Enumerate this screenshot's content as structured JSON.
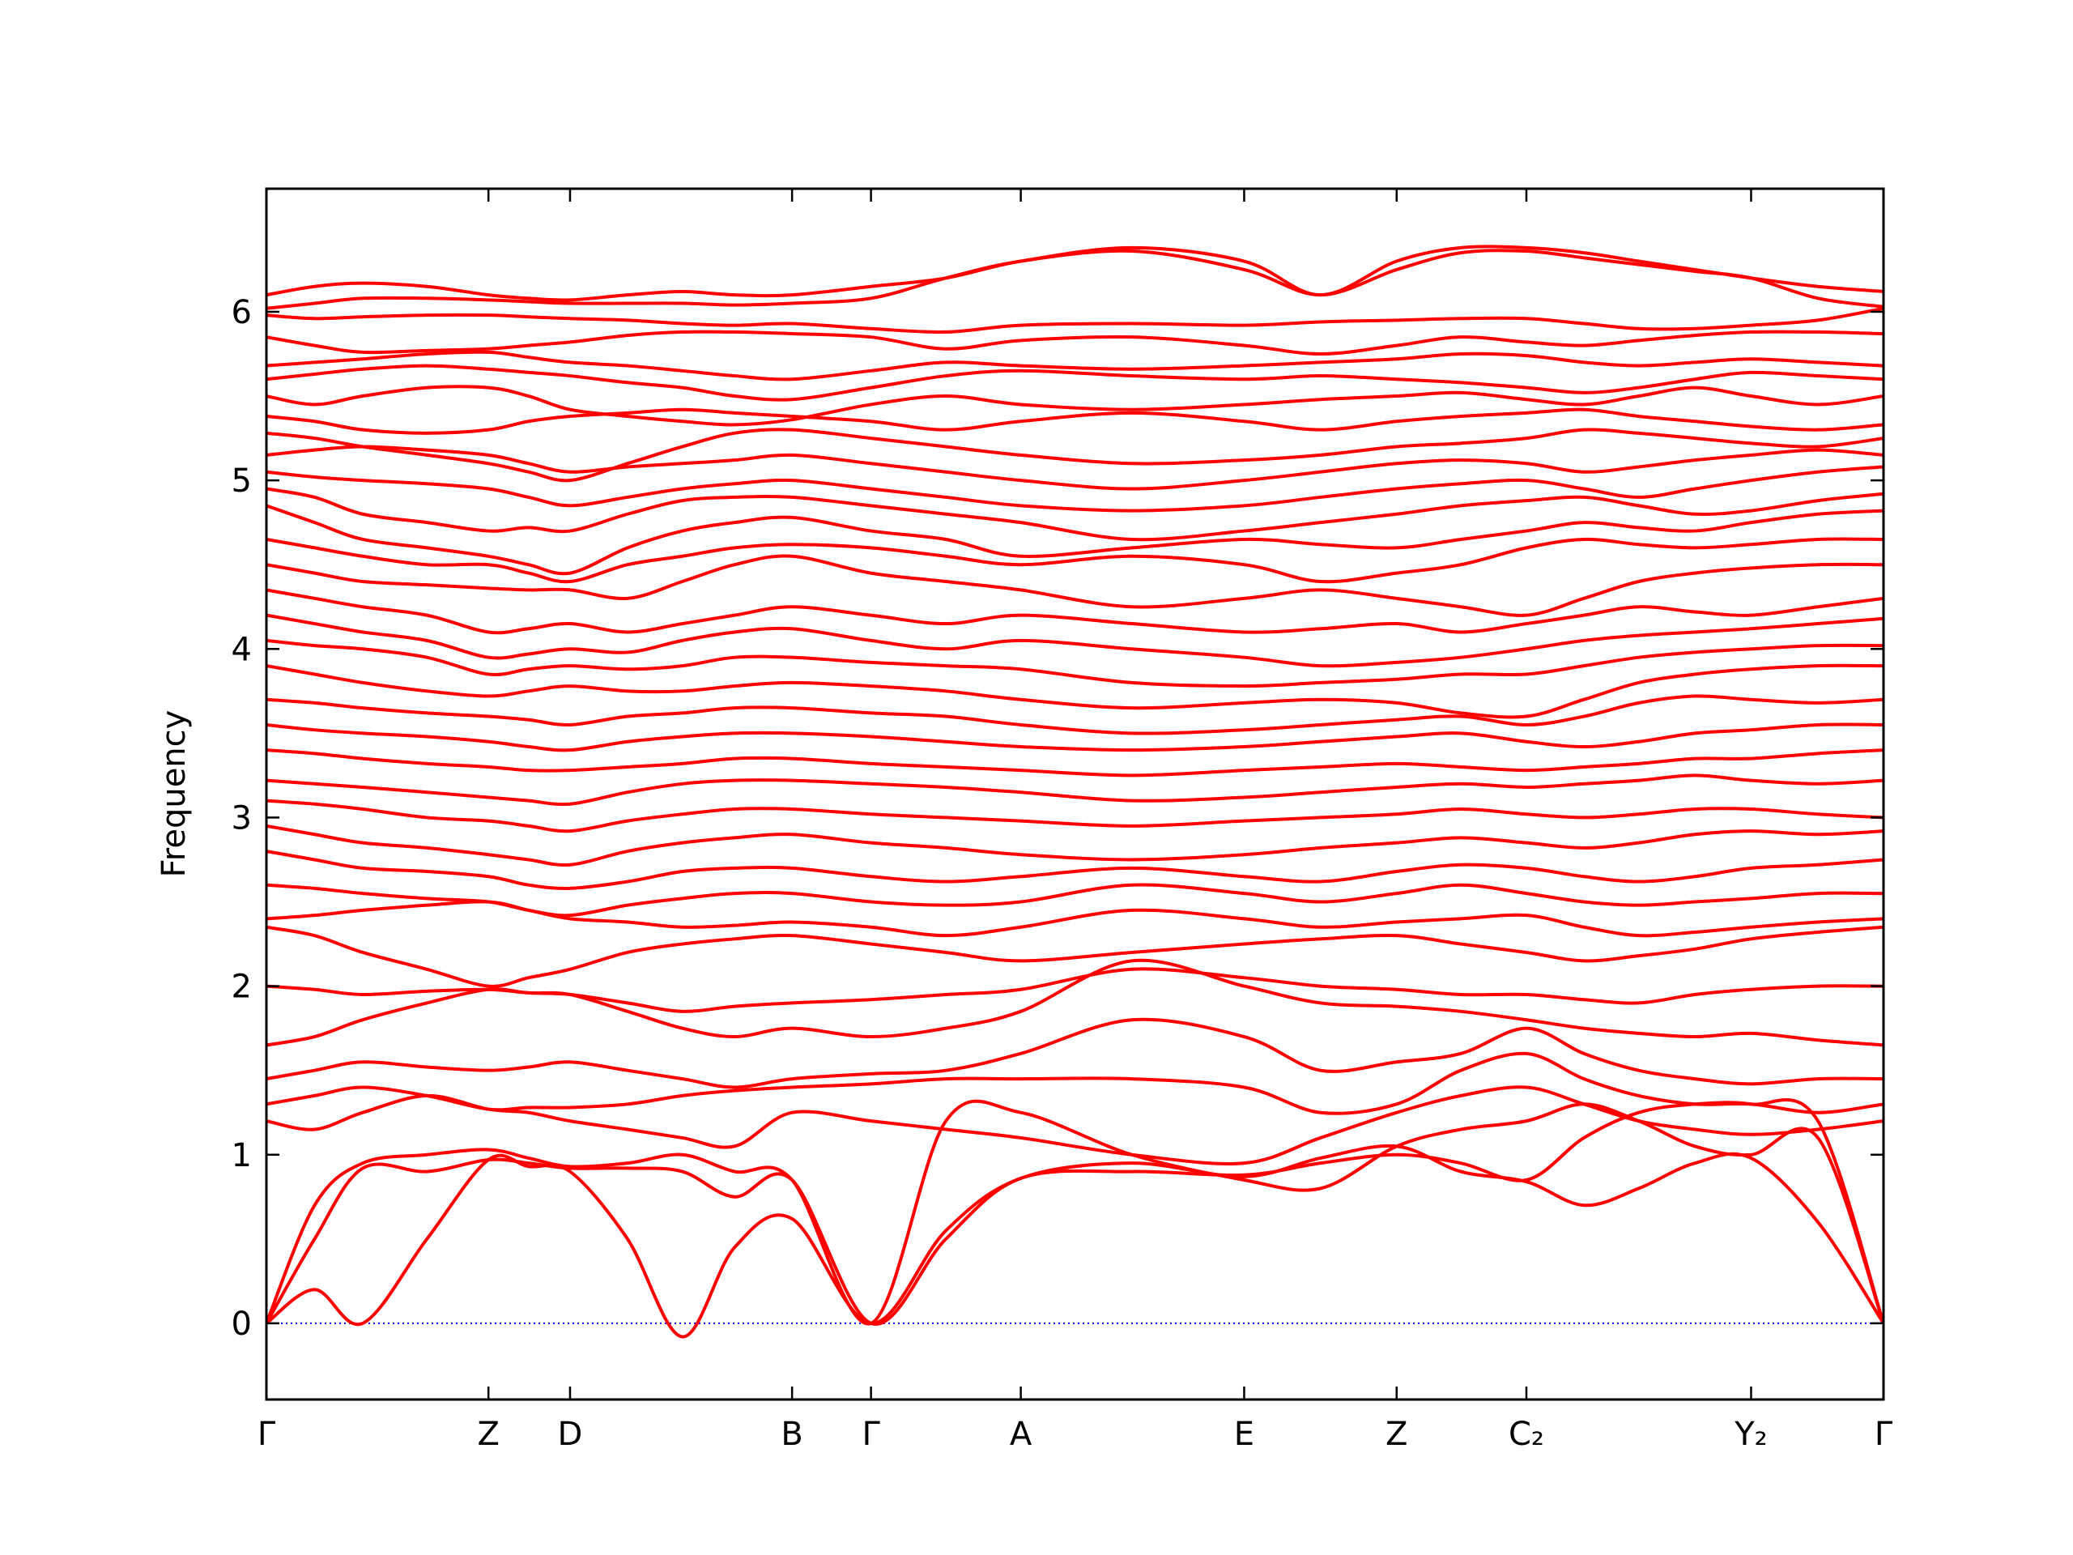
{
  "chart_data": {
    "type": "line",
    "ylabel": "Frequency",
    "color": "#ff0000",
    "zero_line_color": "#0000ff",
    "xlim": [
      0,
      1.209
    ],
    "ylim": [
      -0.452,
      6.73
    ],
    "yticks": [
      0,
      1,
      2,
      3,
      4,
      5,
      6
    ],
    "xticks": [
      {
        "value": 0,
        "label": "Γ"
      },
      {
        "value": 0.166,
        "label": "Z"
      },
      {
        "value": 0.227,
        "label": "D"
      },
      {
        "value": 0.393,
        "label": "B"
      },
      {
        "value": 0.452,
        "label": "Γ"
      },
      {
        "value": 0.564,
        "label": "A"
      },
      {
        "value": 0.731,
        "label": "E"
      },
      {
        "value": 0.845,
        "label": "Z"
      },
      {
        "value": 0.942,
        "label": "C₂"
      },
      {
        "value": 1.11,
        "label": "Y₂"
      },
      {
        "value": 1.209,
        "label": "Γ"
      }
    ],
    "x": [
      0,
      0.036,
      0.072,
      0.12,
      0.166,
      0.196,
      0.227,
      0.27,
      0.311,
      0.35,
      0.393,
      0.452,
      0.508,
      0.564,
      0.647,
      0.731,
      0.788,
      0.845,
      0.893,
      0.942,
      0.985,
      1.026,
      1.068,
      1.11,
      1.16,
      1.209
    ],
    "series": [
      {
        "values": [
          0,
          0.2,
          0,
          0.5,
          0.97,
          0.93,
          0.9,
          0.5,
          -0.08,
          0.45,
          0.62,
          0,
          0.55,
          0.86,
          0.95,
          0.87,
          0.98,
          1.05,
          0.9,
          0.84,
          0.7,
          0.8,
          0.95,
          0.98,
          0.6,
          0
        ]
      },
      {
        "values": [
          0,
          0.5,
          0.92,
          0.9,
          0.97,
          0.95,
          0.92,
          0.92,
          0.9,
          0.75,
          0.85,
          0,
          0.5,
          0.86,
          0.9,
          0.88,
          0.95,
          1.0,
          0.95,
          0.85,
          1.1,
          1.25,
          1.3,
          1.3,
          1.2,
          0
        ]
      },
      {
        "values": [
          0,
          0.7,
          0.95,
          1.0,
          1.03,
          0.98,
          0.93,
          0.95,
          1.0,
          0.9,
          0.85,
          0,
          1.2,
          1.25,
          1.0,
          0.85,
          0.8,
          1.05,
          1.15,
          1.2,
          1.3,
          1.2,
          1.05,
          1.0,
          1.1,
          0
        ]
      },
      {
        "values": [
          6.1,
          6.15,
          6.17,
          6.15,
          6.1,
          6.08,
          6.07,
          6.1,
          6.12,
          6.1,
          6.1,
          6.15,
          6.2,
          6.3,
          6.38,
          6.3,
          6.1,
          6.3,
          6.38,
          6.38,
          6.35,
          6.3,
          6.25,
          6.2,
          6.15,
          6.12
        ]
      },
      {
        "values": [
          6.02,
          6.05,
          6.08,
          6.08,
          6.07,
          6.06,
          6.05,
          6.05,
          6.05,
          6.04,
          6.05,
          6.08,
          6.2,
          6.3,
          6.36,
          6.25,
          6.1,
          6.25,
          6.35,
          6.36,
          6.32,
          6.28,
          6.24,
          6.2,
          6.08,
          6.03
        ]
      },
      {
        "values": [
          5.98,
          5.96,
          5.97,
          5.98,
          5.98,
          5.97,
          5.96,
          5.95,
          5.93,
          5.92,
          5.93,
          5.9,
          5.88,
          5.92,
          5.93,
          5.92,
          5.94,
          5.95,
          5.96,
          5.96,
          5.93,
          5.9,
          5.9,
          5.92,
          5.95,
          6.02
        ]
      },
      {
        "values": [
          5.85,
          5.8,
          5.76,
          5.77,
          5.78,
          5.8,
          5.82,
          5.86,
          5.88,
          5.88,
          5.87,
          5.85,
          5.78,
          5.83,
          5.85,
          5.8,
          5.75,
          5.8,
          5.85,
          5.82,
          5.8,
          5.83,
          5.86,
          5.88,
          5.88,
          5.87
        ]
      },
      {
        "values": [
          5.68,
          5.7,
          5.72,
          5.75,
          5.76,
          5.73,
          5.7,
          5.68,
          5.65,
          5.62,
          5.6,
          5.65,
          5.7,
          5.68,
          5.66,
          5.68,
          5.7,
          5.72,
          5.75,
          5.74,
          5.7,
          5.68,
          5.7,
          5.72,
          5.7,
          5.68
        ]
      },
      {
        "values": [
          5.6,
          5.63,
          5.66,
          5.68,
          5.66,
          5.64,
          5.62,
          5.58,
          5.55,
          5.5,
          5.48,
          5.55,
          5.62,
          5.65,
          5.62,
          5.6,
          5.62,
          5.6,
          5.58,
          5.55,
          5.52,
          5.55,
          5.6,
          5.64,
          5.62,
          5.6
        ]
      },
      {
        "values": [
          5.5,
          5.45,
          5.5,
          5.55,
          5.55,
          5.5,
          5.42,
          5.38,
          5.35,
          5.33,
          5.36,
          5.45,
          5.5,
          5.45,
          5.42,
          5.45,
          5.48,
          5.5,
          5.52,
          5.48,
          5.45,
          5.5,
          5.55,
          5.5,
          5.45,
          5.5
        ]
      },
      {
        "values": [
          5.38,
          5.35,
          5.3,
          5.28,
          5.3,
          5.35,
          5.38,
          5.4,
          5.42,
          5.4,
          5.38,
          5.35,
          5.3,
          5.35,
          5.4,
          5.35,
          5.3,
          5.35,
          5.38,
          5.4,
          5.42,
          5.38,
          5.35,
          5.32,
          5.3,
          5.33
        ]
      },
      {
        "values": [
          5.28,
          5.25,
          5.2,
          5.15,
          5.1,
          5.05,
          5.0,
          5.1,
          5.2,
          5.28,
          5.3,
          5.25,
          5.2,
          5.15,
          5.1,
          5.12,
          5.15,
          5.2,
          5.22,
          5.25,
          5.3,
          5.28,
          5.25,
          5.22,
          5.2,
          5.25
        ]
      },
      {
        "values": [
          5.15,
          5.18,
          5.2,
          5.18,
          5.15,
          5.1,
          5.05,
          5.08,
          5.1,
          5.12,
          5.15,
          5.1,
          5.05,
          5.0,
          4.95,
          5.0,
          5.05,
          5.1,
          5.12,
          5.1,
          5.05,
          5.08,
          5.12,
          5.15,
          5.18,
          5.15
        ]
      },
      {
        "values": [
          5.05,
          5.02,
          5.0,
          4.98,
          4.95,
          4.9,
          4.85,
          4.9,
          4.95,
          4.98,
          5.0,
          4.95,
          4.9,
          4.85,
          4.82,
          4.85,
          4.9,
          4.95,
          4.98,
          5.0,
          4.95,
          4.9,
          4.95,
          5.0,
          5.05,
          5.08
        ]
      },
      {
        "values": [
          4.95,
          4.9,
          4.8,
          4.75,
          4.7,
          4.72,
          4.7,
          4.8,
          4.88,
          4.9,
          4.9,
          4.85,
          4.8,
          4.75,
          4.65,
          4.7,
          4.75,
          4.8,
          4.85,
          4.88,
          4.9,
          4.85,
          4.8,
          4.82,
          4.88,
          4.92
        ]
      },
      {
        "values": [
          4.85,
          4.75,
          4.65,
          4.6,
          4.55,
          4.5,
          4.45,
          4.6,
          4.7,
          4.75,
          4.78,
          4.7,
          4.65,
          4.55,
          4.6,
          4.65,
          4.62,
          4.6,
          4.65,
          4.7,
          4.75,
          4.72,
          4.7,
          4.75,
          4.8,
          4.82
        ]
      },
      {
        "values": [
          4.65,
          4.6,
          4.55,
          4.5,
          4.5,
          4.45,
          4.4,
          4.5,
          4.55,
          4.6,
          4.62,
          4.6,
          4.55,
          4.5,
          4.55,
          4.5,
          4.4,
          4.45,
          4.5,
          4.6,
          4.65,
          4.62,
          4.6,
          4.62,
          4.65,
          4.65
        ]
      },
      {
        "values": [
          4.5,
          4.45,
          4.4,
          4.38,
          4.36,
          4.35,
          4.35,
          4.3,
          4.4,
          4.5,
          4.55,
          4.45,
          4.4,
          4.35,
          4.25,
          4.3,
          4.35,
          4.3,
          4.25,
          4.2,
          4.3,
          4.4,
          4.45,
          4.48,
          4.5,
          4.5
        ]
      },
      {
        "values": [
          4.35,
          4.3,
          4.25,
          4.2,
          4.1,
          4.12,
          4.15,
          4.1,
          4.15,
          4.2,
          4.25,
          4.2,
          4.15,
          4.2,
          4.15,
          4.1,
          4.12,
          4.15,
          4.1,
          4.15,
          4.2,
          4.25,
          4.22,
          4.2,
          4.25,
          4.3
        ]
      },
      {
        "values": [
          4.2,
          4.15,
          4.1,
          4.05,
          3.95,
          3.97,
          4.0,
          3.98,
          4.05,
          4.1,
          4.12,
          4.05,
          4.0,
          4.05,
          4.0,
          3.95,
          3.9,
          3.92,
          3.95,
          4.0,
          4.05,
          4.08,
          4.1,
          4.12,
          4.15,
          4.18
        ]
      },
      {
        "values": [
          4.05,
          4.02,
          4.0,
          3.95,
          3.85,
          3.88,
          3.9,
          3.88,
          3.9,
          3.95,
          3.95,
          3.92,
          3.9,
          3.88,
          3.8,
          3.78,
          3.8,
          3.82,
          3.85,
          3.85,
          3.9,
          3.95,
          3.98,
          4.0,
          4.02,
          4.02
        ]
      },
      {
        "values": [
          3.9,
          3.85,
          3.8,
          3.75,
          3.72,
          3.75,
          3.78,
          3.75,
          3.75,
          3.78,
          3.8,
          3.78,
          3.75,
          3.7,
          3.65,
          3.68,
          3.7,
          3.68,
          3.62,
          3.6,
          3.7,
          3.8,
          3.85,
          3.88,
          3.9,
          3.9
        ]
      },
      {
        "values": [
          3.7,
          3.68,
          3.65,
          3.62,
          3.6,
          3.58,
          3.55,
          3.6,
          3.62,
          3.65,
          3.65,
          3.62,
          3.6,
          3.55,
          3.5,
          3.52,
          3.55,
          3.58,
          3.6,
          3.55,
          3.6,
          3.68,
          3.72,
          3.7,
          3.68,
          3.7
        ]
      },
      {
        "values": [
          3.55,
          3.52,
          3.5,
          3.48,
          3.45,
          3.42,
          3.4,
          3.45,
          3.48,
          3.5,
          3.5,
          3.48,
          3.45,
          3.42,
          3.4,
          3.42,
          3.45,
          3.48,
          3.5,
          3.45,
          3.42,
          3.45,
          3.5,
          3.52,
          3.55,
          3.55
        ]
      },
      {
        "values": [
          3.4,
          3.38,
          3.35,
          3.32,
          3.3,
          3.28,
          3.28,
          3.3,
          3.32,
          3.35,
          3.35,
          3.32,
          3.3,
          3.28,
          3.25,
          3.28,
          3.3,
          3.32,
          3.3,
          3.28,
          3.3,
          3.32,
          3.35,
          3.35,
          3.38,
          3.4
        ]
      },
      {
        "values": [
          3.22,
          3.2,
          3.18,
          3.15,
          3.12,
          3.1,
          3.08,
          3.15,
          3.2,
          3.22,
          3.22,
          3.2,
          3.18,
          3.15,
          3.1,
          3.12,
          3.15,
          3.18,
          3.2,
          3.18,
          3.2,
          3.22,
          3.25,
          3.22,
          3.2,
          3.22
        ]
      },
      {
        "values": [
          3.1,
          3.08,
          3.05,
          3.0,
          2.98,
          2.95,
          2.92,
          2.98,
          3.02,
          3.05,
          3.05,
          3.02,
          3.0,
          2.98,
          2.95,
          2.98,
          3.0,
          3.02,
          3.05,
          3.02,
          3.0,
          3.02,
          3.05,
          3.05,
          3.02,
          3.0
        ]
      },
      {
        "values": [
          2.95,
          2.9,
          2.85,
          2.82,
          2.78,
          2.75,
          2.72,
          2.8,
          2.85,
          2.88,
          2.9,
          2.85,
          2.82,
          2.78,
          2.75,
          2.78,
          2.82,
          2.85,
          2.88,
          2.85,
          2.82,
          2.85,
          2.9,
          2.92,
          2.9,
          2.92
        ]
      },
      {
        "values": [
          2.8,
          2.75,
          2.7,
          2.68,
          2.65,
          2.6,
          2.58,
          2.62,
          2.68,
          2.7,
          2.7,
          2.65,
          2.62,
          2.65,
          2.7,
          2.65,
          2.62,
          2.68,
          2.72,
          2.7,
          2.65,
          2.62,
          2.65,
          2.7,
          2.72,
          2.75
        ]
      },
      {
        "values": [
          2.6,
          2.58,
          2.55,
          2.52,
          2.5,
          2.45,
          2.42,
          2.48,
          2.52,
          2.55,
          2.55,
          2.5,
          2.48,
          2.5,
          2.6,
          2.55,
          2.5,
          2.55,
          2.6,
          2.55,
          2.5,
          2.48,
          2.5,
          2.52,
          2.55,
          2.55
        ]
      },
      {
        "values": [
          2.4,
          2.42,
          2.45,
          2.48,
          2.5,
          2.45,
          2.4,
          2.38,
          2.35,
          2.36,
          2.38,
          2.35,
          2.3,
          2.35,
          2.45,
          2.4,
          2.35,
          2.38,
          2.4,
          2.42,
          2.35,
          2.3,
          2.32,
          2.35,
          2.38,
          2.4
        ]
      },
      {
        "values": [
          2.35,
          2.3,
          2.2,
          2.1,
          2.0,
          2.05,
          2.1,
          2.2,
          2.25,
          2.28,
          2.3,
          2.25,
          2.2,
          2.15,
          2.2,
          2.25,
          2.28,
          2.3,
          2.25,
          2.2,
          2.15,
          2.18,
          2.22,
          2.28,
          2.32,
          2.35
        ]
      },
      {
        "values": [
          2.0,
          1.98,
          1.95,
          1.97,
          1.98,
          1.96,
          1.95,
          1.9,
          1.85,
          1.88,
          1.9,
          1.92,
          1.95,
          1.98,
          2.1,
          2.05,
          2.0,
          1.98,
          1.95,
          1.95,
          1.92,
          1.9,
          1.95,
          1.98,
          2.0,
          2.0
        ]
      },
      {
        "values": [
          1.65,
          1.7,
          1.8,
          1.9,
          1.98,
          1.96,
          1.95,
          1.85,
          1.75,
          1.7,
          1.75,
          1.7,
          1.75,
          1.85,
          2.15,
          2.0,
          1.9,
          1.88,
          1.85,
          1.8,
          1.75,
          1.72,
          1.7,
          1.72,
          1.68,
          1.65
        ]
      },
      {
        "values": [
          1.45,
          1.5,
          1.55,
          1.52,
          1.5,
          1.52,
          1.55,
          1.5,
          1.45,
          1.4,
          1.45,
          1.48,
          1.5,
          1.6,
          1.8,
          1.7,
          1.5,
          1.55,
          1.6,
          1.75,
          1.6,
          1.5,
          1.45,
          1.42,
          1.45,
          1.45
        ]
      },
      {
        "values": [
          1.3,
          1.35,
          1.4,
          1.35,
          1.27,
          1.28,
          1.28,
          1.3,
          1.35,
          1.38,
          1.4,
          1.42,
          1.45,
          1.45,
          1.45,
          1.4,
          1.25,
          1.3,
          1.5,
          1.6,
          1.45,
          1.35,
          1.3,
          1.3,
          1.25,
          1.3
        ]
      },
      {
        "values": [
          1.2,
          1.15,
          1.25,
          1.35,
          1.27,
          1.25,
          1.2,
          1.15,
          1.1,
          1.05,
          1.25,
          1.2,
          1.15,
          1.1,
          1.0,
          0.95,
          1.1,
          1.25,
          1.35,
          1.4,
          1.3,
          1.2,
          1.15,
          1.12,
          1.15,
          1.2
        ]
      }
    ]
  }
}
